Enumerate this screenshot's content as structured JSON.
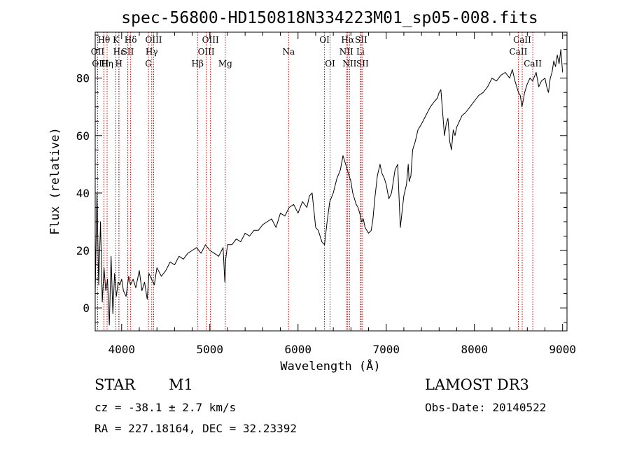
{
  "chart_data": {
    "type": "line",
    "title": "spec-56800-HD150818N334223M01_sp05-008.fits",
    "xlabel": "Wavelength (Å)",
    "ylabel": "Flux (relative)",
    "xlim": [
      3700,
      9050
    ],
    "ylim": [
      -8,
      96
    ],
    "xticks": [
      4000,
      5000,
      6000,
      7000,
      8000,
      9000
    ],
    "yticks": [
      0,
      20,
      40,
      60,
      80
    ],
    "xtick_labels": [
      "4000",
      "5000",
      "6000",
      "7000",
      "8000",
      "9000"
    ],
    "ytick_labels": [
      "0",
      "20",
      "40",
      "60",
      "80"
    ],
    "series": [
      {
        "name": "flux",
        "x": [
          3700,
          3720,
          3740,
          3760,
          3780,
          3800,
          3820,
          3840,
          3860,
          3880,
          3900,
          3920,
          3940,
          3960,
          3980,
          4000,
          4020,
          4050,
          4080,
          4100,
          4130,
          4160,
          4200,
          4230,
          4260,
          4290,
          4310,
          4340,
          4370,
          4400,
          4450,
          4500,
          4550,
          4600,
          4650,
          4700,
          4750,
          4800,
          4850,
          4900,
          4950,
          5000,
          5050,
          5100,
          5150,
          5170,
          5180,
          5200,
          5250,
          5300,
          5350,
          5400,
          5450,
          5500,
          5550,
          5600,
          5650,
          5700,
          5750,
          5800,
          5850,
          5900,
          5950,
          6000,
          6050,
          6100,
          6130,
          6160,
          6180,
          6200,
          6230,
          6270,
          6300,
          6330,
          6360,
          6400,
          6440,
          6480,
          6510,
          6540,
          6560,
          6580,
          6600,
          6620,
          6640,
          6660,
          6680,
          6700,
          6720,
          6740,
          6760,
          6780,
          6800,
          6830,
          6850,
          6870,
          6900,
          6930,
          6950,
          6980,
          7000,
          7030,
          7060,
          7100,
          7130,
          7160,
          7200,
          7230,
          7250,
          7260,
          7280,
          7300,
          7330,
          7360,
          7400,
          7450,
          7500,
          7550,
          7580,
          7600,
          7620,
          7640,
          7660,
          7680,
          7700,
          7720,
          7740,
          7760,
          7780,
          7800,
          7830,
          7860,
          7900,
          7950,
          8000,
          8050,
          8100,
          8150,
          8200,
          8250,
          8300,
          8350,
          8400,
          8430,
          8460,
          8480,
          8500,
          8520,
          8540,
          8570,
          8600,
          8630,
          8660,
          8700,
          8730,
          8760,
          8800,
          8820,
          8840,
          8860,
          8880,
          8900,
          8920,
          8940,
          8960,
          8980,
          9000
        ],
        "y": [
          5,
          40,
          8,
          30,
          2,
          14,
          6,
          10,
          -6,
          18,
          -2,
          12,
          4,
          9,
          8,
          10,
          6,
          4,
          11,
          8,
          10,
          7,
          13,
          6,
          9,
          3,
          12,
          10,
          8,
          14,
          11,
          13,
          16,
          15,
          18,
          17,
          19,
          20,
          21,
          19,
          22,
          20,
          19,
          18,
          21,
          9,
          17,
          22,
          22,
          24,
          23,
          26,
          25,
          27,
          27,
          29,
          30,
          31,
          28,
          33,
          32,
          35,
          36,
          33,
          37,
          35,
          39,
          40,
          34,
          28,
          27,
          23,
          22,
          30,
          37,
          40,
          45,
          48,
          53,
          50,
          48,
          46,
          44,
          40,
          38,
          36,
          35,
          33,
          30,
          31,
          28,
          27,
          26,
          27,
          31,
          38,
          46,
          50,
          47,
          45,
          43,
          38,
          40,
          48,
          50,
          28,
          39,
          43,
          50,
          44,
          46,
          55,
          58,
          62,
          64,
          67,
          70,
          72,
          73,
          75,
          76,
          68,
          60,
          64,
          66,
          58,
          55,
          62,
          60,
          63,
          65,
          67,
          68,
          70,
          72,
          74,
          75,
          77,
          80,
          79,
          81,
          82,
          80,
          83,
          79,
          77,
          75,
          74,
          70,
          75,
          78,
          80,
          79,
          82,
          77,
          79,
          80,
          77,
          75,
          80,
          82,
          86,
          84,
          88,
          85,
          90,
          82
        ]
      }
    ],
    "line_markers": [
      {
        "label": "Hθ",
        "wl": 3798,
        "row": 0,
        "align": "middle"
      },
      {
        "label": "Hε",
        "wl": 3970,
        "row": 1,
        "align": "middle"
      },
      {
        "label": "OII",
        "wl": 3727,
        "row": 1,
        "align": "middle"
      },
      {
        "label": "OIII",
        "wl": 3727,
        "row": 2,
        "align": "start"
      },
      {
        "label": "Hη",
        "wl": 3835,
        "row": 2,
        "align": "middle"
      },
      {
        "label": "K",
        "wl": 3934,
        "row": 0,
        "align": "middle"
      },
      {
        "label": "H",
        "wl": 3968,
        "row": 2,
        "align": "middle"
      },
      {
        "label": "Hδ",
        "wl": 4102,
        "row": 0,
        "align": "middle"
      },
      {
        "label": "SII",
        "wl": 4069,
        "row": 1,
        "align": "middle"
      },
      {
        "label": "OIII",
        "wl": 4363,
        "row": 0,
        "align": "middle"
      },
      {
        "label": "Hγ",
        "wl": 4341,
        "row": 1,
        "align": "middle"
      },
      {
        "label": "G",
        "wl": 4304,
        "row": 2,
        "align": "middle"
      },
      {
        "label": "Hβ",
        "wl": 4861,
        "row": 2,
        "align": "middle"
      },
      {
        "label": "OIII",
        "wl": 5007,
        "row": 0,
        "align": "middle"
      },
      {
        "label": "OIII",
        "wl": 4959,
        "row": 1,
        "align": "middle"
      },
      {
        "label": "Mg",
        "wl": 5175,
        "row": 2,
        "align": "middle"
      },
      {
        "label": "Na",
        "wl": 5893,
        "row": 1,
        "align": "middle"
      },
      {
        "label": "OI",
        "wl": 6300,
        "row": 0,
        "align": "middle"
      },
      {
        "label": "OI",
        "wl": 6363,
        "row": 2,
        "align": "middle"
      },
      {
        "label": "Hα",
        "wl": 6563,
        "row": 0,
        "align": "middle"
      },
      {
        "label": "NII",
        "wl": 6548,
        "row": 1,
        "align": "middle"
      },
      {
        "label": "NII",
        "wl": 6584,
        "row": 2,
        "align": "middle"
      },
      {
        "label": "SII",
        "wl": 6716,
        "row": 0,
        "align": "middle"
      },
      {
        "label": "Li",
        "wl": 6708,
        "row": 1,
        "align": "middle"
      },
      {
        "label": "SII",
        "wl": 6731,
        "row": 2,
        "align": "middle"
      },
      {
        "label": "CaII",
        "wl": 8542,
        "row": 0,
        "align": "middle"
      },
      {
        "label": "CaII",
        "wl": 8498,
        "row": 1,
        "align": "middle"
      },
      {
        "label": "CaII",
        "wl": 8662,
        "row": 2,
        "align": "middle"
      }
    ]
  },
  "info": {
    "object_class": "STAR",
    "subclass": "M1",
    "survey": "LAMOST DR3",
    "cz": "cz = -38.1 ± 2.7 km/s",
    "obs_date": "Obs-Date: 20140522",
    "coords": "RA = 227.18164, DEC =  32.23392"
  },
  "colors": {
    "axes": "#000000",
    "spectrum": "#000000",
    "line_marker": "#cc0000"
  }
}
